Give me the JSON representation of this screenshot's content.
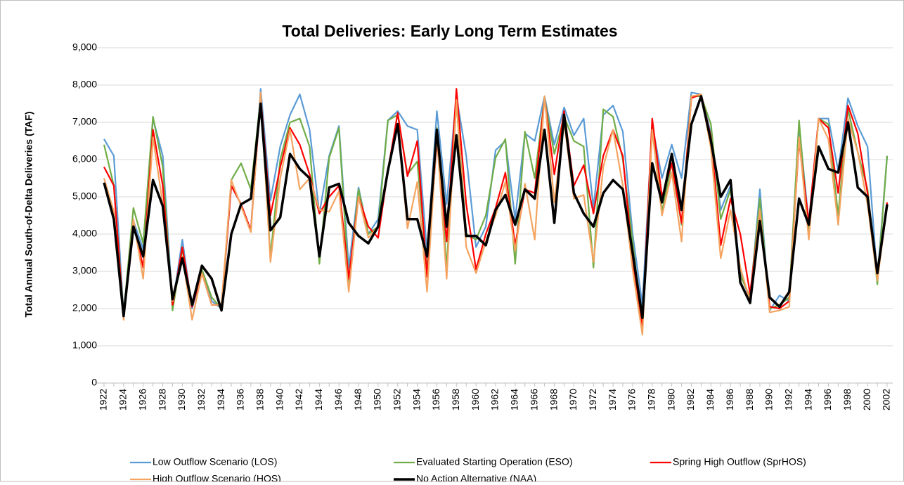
{
  "chart_data": {
    "type": "line",
    "title": "Total Deliveries:  Early Long Term Estimates",
    "y_label": "Total Annual South-of-Delta Deliveries (TAF)",
    "categories": [
      "1922",
      null,
      "1924",
      null,
      "1926",
      null,
      "1928",
      null,
      "1930",
      null,
      "1932",
      null,
      "1934",
      null,
      "1936",
      null,
      "1938",
      null,
      "1940",
      null,
      "1942",
      null,
      "1944",
      null,
      "1946",
      null,
      "1948",
      null,
      "1950",
      null,
      "1952",
      null,
      "1954",
      null,
      "1956",
      null,
      "1958",
      null,
      "1960",
      null,
      "1962",
      null,
      "1964",
      null,
      "1966",
      null,
      "1968",
      null,
      "1970",
      null,
      "1972",
      null,
      "1974",
      null,
      "1976",
      null,
      "1978",
      null,
      "1980",
      null,
      "1982",
      null,
      "1984",
      null,
      "1986",
      null,
      "1988",
      null,
      "1990",
      null,
      "1992",
      null,
      "1994",
      null,
      "1996",
      null,
      "1998",
      null,
      "2000",
      null,
      "2002"
    ],
    "series": [
      {
        "name": "Low Outflow Scenario (LOS)",
        "color": "#5b9bd5",
        "width": 2.2,
        "values": [
          6550,
          6100,
          1850,
          4350,
          3600,
          7100,
          6100,
          2100,
          3850,
          2000,
          2950,
          2200,
          2000,
          5300,
          4800,
          4100,
          7900,
          4900,
          6350,
          7200,
          7750,
          6800,
          4550,
          6100,
          6900,
          3100,
          5250,
          4000,
          4400,
          7050,
          7300,
          6900,
          6800,
          3500,
          7300,
          4800,
          7700,
          6100,
          3650,
          4200,
          6250,
          6500,
          4400,
          6700,
          6500,
          7700,
          6400,
          7400,
          6650,
          7100,
          4700,
          7200,
          7450,
          6750,
          4000,
          2100,
          6950,
          5500,
          6400,
          5500,
          7800,
          7750,
          6700,
          4650,
          5300,
          3000,
          2200,
          5200,
          1950,
          2350,
          2200,
          6900,
          4300,
          7100,
          7100,
          5700,
          7650,
          6900,
          6350,
          2800,
          6100
        ]
      },
      {
        "name": "Evaluated Starting Operation (ESO)",
        "color": "#70ad47",
        "width": 2.2,
        "values": [
          6400,
          5300,
          1850,
          4700,
          3750,
          7150,
          5800,
          1950,
          3600,
          2100,
          3050,
          2300,
          2000,
          5450,
          5900,
          5200,
          7650,
          3400,
          6000,
          7000,
          7100,
          6350,
          3200,
          6050,
          6850,
          2700,
          5200,
          4000,
          4200,
          7050,
          7200,
          5600,
          5950,
          3000,
          6850,
          3100,
          7550,
          4000,
          3850,
          4500,
          6050,
          6550,
          3200,
          6750,
          5500,
          7650,
          6150,
          7150,
          6500,
          6350,
          3100,
          7350,
          7150,
          6000,
          3800,
          1500,
          7000,
          4600,
          5900,
          4250,
          7700,
          7700,
          6950,
          4400,
          5200,
          2900,
          2300,
          4950,
          2000,
          2100,
          2300,
          7050,
          4000,
          7100,
          6950,
          4500,
          7350,
          6200,
          5200,
          2650,
          6100
        ]
      },
      {
        "name": "Spring High Outflow (SprHOS)",
        "color": "#ff0000",
        "width": 2.2,
        "values": [
          5800,
          5300,
          1750,
          4300,
          3100,
          6800,
          5300,
          2100,
          3650,
          2050,
          2950,
          2100,
          2100,
          5300,
          4800,
          4100,
          7700,
          4500,
          5800,
          6850,
          6400,
          5600,
          4550,
          5000,
          5300,
          2800,
          5000,
          4200,
          3900,
          5700,
          7250,
          5550,
          6500,
          2850,
          6500,
          3800,
          7900,
          4800,
          3050,
          4000,
          4700,
          5650,
          3700,
          5200,
          5100,
          7650,
          5600,
          7300,
          5300,
          5850,
          4550,
          6100,
          6800,
          6100,
          3300,
          1500,
          7100,
          5000,
          5900,
          4300,
          7650,
          7750,
          6600,
          3700,
          4950,
          4000,
          2400,
          4600,
          2050,
          2000,
          2200,
          6500,
          4300,
          7100,
          6850,
          5100,
          7450,
          6700,
          5100,
          2900,
          4850
        ]
      },
      {
        "name": "High Outflow Scenario (HOS)",
        "color": "#f4a460",
        "width": 2.2,
        "values": [
          5500,
          4600,
          1700,
          4400,
          2800,
          6600,
          4800,
          2200,
          3400,
          1700,
          2950,
          2100,
          2100,
          5450,
          4750,
          4050,
          7800,
          3250,
          5500,
          6800,
          5200,
          5500,
          4650,
          4600,
          5150,
          2450,
          5000,
          3900,
          4200,
          5750,
          6950,
          4150,
          5400,
          2450,
          6650,
          2800,
          7600,
          3650,
          2950,
          3800,
          4500,
          5400,
          3550,
          5350,
          3850,
          7700,
          4850,
          7000,
          4950,
          5050,
          3250,
          5800,
          6800,
          5300,
          3050,
          1300,
          6800,
          4500,
          5650,
          3800,
          7700,
          7750,
          6300,
          3350,
          4650,
          3100,
          2200,
          4650,
          1900,
          1950,
          2050,
          6600,
          3850,
          7100,
          6550,
          4250,
          7100,
          6200,
          4800,
          2750,
          4750
        ]
      },
      {
        "name": "No Action Alternative (NAA)",
        "color": "#000000",
        "width": 3.5,
        "values": [
          5380,
          4400,
          1800,
          4200,
          3400,
          5450,
          4750,
          2250,
          3350,
          2100,
          3150,
          2800,
          1950,
          4000,
          4800,
          4950,
          7500,
          4100,
          4450,
          6150,
          5750,
          5500,
          3400,
          5250,
          5350,
          4300,
          3950,
          3750,
          4200,
          5700,
          6950,
          4400,
          4400,
          3400,
          6800,
          4200,
          6650,
          3950,
          3950,
          3700,
          4650,
          5050,
          4250,
          5200,
          4950,
          6800,
          4300,
          7200,
          5100,
          4550,
          4200,
          5100,
          5450,
          5200,
          3500,
          1750,
          5900,
          4850,
          6150,
          4650,
          6950,
          7700,
          6500,
          5000,
          5450,
          2700,
          2150,
          4350,
          2300,
          2050,
          2450,
          4950,
          4250,
          6350,
          5750,
          5650,
          7000,
          5250,
          5000,
          2950,
          4800
        ]
      }
    ],
    "ylim": [
      0,
      9000
    ],
    "yticks": [
      {
        "value": 0,
        "label": "0"
      },
      {
        "value": 1000,
        "label": "1,000"
      },
      {
        "value": 2000,
        "label": "2,000"
      },
      {
        "value": 3000,
        "label": "3,000"
      },
      {
        "value": 4000,
        "label": "4,000"
      },
      {
        "value": 5000,
        "label": "5,000"
      },
      {
        "value": 6000,
        "label": "6,000"
      },
      {
        "value": 7000,
        "label": "7,000"
      },
      {
        "value": 8000,
        "label": "8,000"
      },
      {
        "value": 9000,
        "label": "9,000"
      }
    ],
    "grid": true,
    "legend": "bottom"
  }
}
